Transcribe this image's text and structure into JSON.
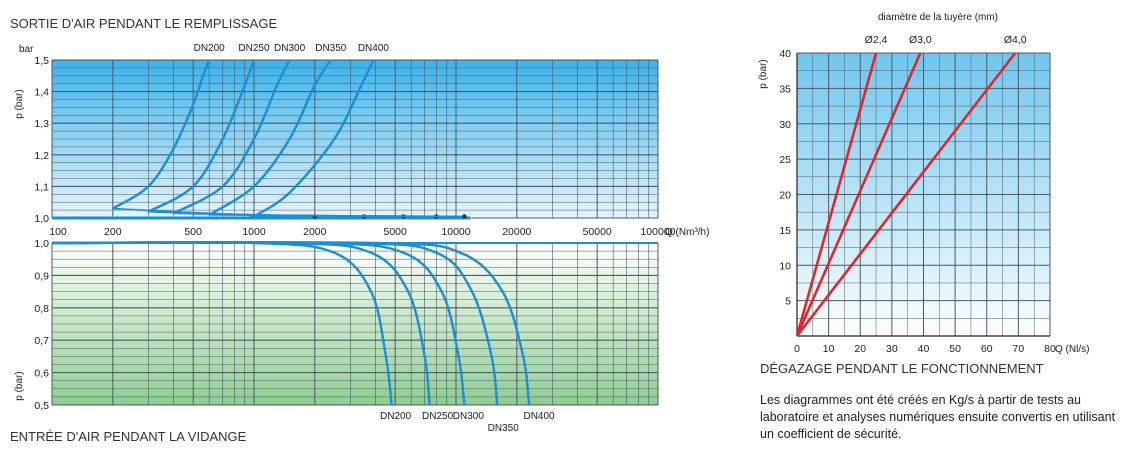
{
  "chart_data": [
    {
      "type": "line",
      "title": "SORTIE D'AIR PENDANT LE REMPLISSAGE",
      "ylabel": "p (bar)",
      "yunit": "bar",
      "xlabel": "Q (Nm³/h)",
      "xscale": "log",
      "xlim": [
        100,
        100000
      ],
      "ylim": [
        1.0,
        1.5
      ],
      "x_ticks": [
        "100",
        "200",
        "500",
        "1000",
        "2000",
        "5000",
        "10000",
        "20000",
        "50000",
        "100000"
      ],
      "y_ticks": [
        "1,0",
        "1,1",
        "1,2",
        "1,3",
        "1,4",
        "1,5"
      ],
      "grid": true,
      "series": [
        {
          "name": "DN200",
          "x": [
            200,
            300,
            400,
            500,
            560,
            600
          ],
          "y": [
            1.03,
            1.1,
            1.22,
            1.36,
            1.45,
            1.5
          ]
        },
        {
          "name": "DN250",
          "x": [
            300,
            500,
            700,
            900,
            1000
          ],
          "y": [
            1.02,
            1.1,
            1.25,
            1.42,
            1.5
          ]
        },
        {
          "name": "DN300",
          "x": [
            400,
            700,
            1000,
            1300,
            1500
          ],
          "y": [
            1.015,
            1.1,
            1.25,
            1.42,
            1.5
          ]
        },
        {
          "name": "DN350",
          "x": [
            600,
            1000,
            1500,
            2000,
            2400
          ],
          "y": [
            1.01,
            1.1,
            1.25,
            1.42,
            1.5
          ]
        },
        {
          "name": "DN400",
          "x": [
            1000,
            1500,
            2500,
            3400,
            3900
          ],
          "y": [
            1.005,
            1.08,
            1.25,
            1.42,
            1.5
          ]
        }
      ]
    },
    {
      "type": "line",
      "title": "ENTRÉE D'AIR PENDANT LA VIDANGE",
      "ylabel": "p (bar)",
      "xscale": "log",
      "xlim": [
        100,
        100000
      ],
      "ylim": [
        0.5,
        1.0
      ],
      "y_ticks": [
        "0,5",
        "0,6",
        "0,7",
        "0,8",
        "0,9",
        "1,0"
      ],
      "grid": true,
      "series": [
        {
          "name": "DN200",
          "x": [
            100,
            1000,
            2500,
            3800,
            4500,
            4800
          ],
          "y": [
            1.0,
            1.0,
            0.97,
            0.85,
            0.65,
            0.5
          ]
        },
        {
          "name": "DN250",
          "x": [
            100,
            1500,
            3800,
            5800,
            7000,
            7400
          ],
          "y": [
            1.0,
            1.0,
            0.97,
            0.85,
            0.65,
            0.5
          ]
        },
        {
          "name": "DN300",
          "x": [
            100,
            2000,
            5500,
            8500,
            10300,
            11000
          ],
          "y": [
            1.0,
            1.0,
            0.97,
            0.85,
            0.65,
            0.5
          ]
        },
        {
          "name": "DN350",
          "x": [
            100,
            3000,
            8000,
            12000,
            15000,
            16000
          ],
          "y": [
            1.0,
            1.0,
            0.97,
            0.85,
            0.65,
            0.5
          ]
        },
        {
          "name": "DN400",
          "x": [
            100,
            4000,
            10500,
            17000,
            21500,
            23000
          ],
          "y": [
            1.0,
            1.0,
            0.97,
            0.85,
            0.65,
            0.5
          ]
        }
      ]
    },
    {
      "type": "line",
      "title": "DÉGAZAGE PENDANT LE FONCTIONNEMENT",
      "subtitle": "diamètre de la tuyère (mm)",
      "ylabel": "p (bar)",
      "xlabel": "Q (Nl/s)",
      "xlim": [
        0,
        80
      ],
      "ylim": [
        0,
        40
      ],
      "x_ticks": [
        "0",
        "10",
        "20",
        "30",
        "40",
        "50",
        "60",
        "70",
        "80"
      ],
      "y_ticks": [
        "5",
        "10",
        "15",
        "20",
        "25",
        "30",
        "35",
        "40"
      ],
      "grid": true,
      "series": [
        {
          "name": "Ø2,4",
          "x": [
            0,
            25
          ],
          "y": [
            0,
            40
          ]
        },
        {
          "name": "Ø3,0",
          "x": [
            0,
            39
          ],
          "y": [
            0,
            40
          ]
        },
        {
          "name": "Ø4,0",
          "x": [
            0,
            69
          ],
          "y": [
            0,
            40
          ]
        }
      ]
    }
  ],
  "note": "Les diagrammes ont été créés en Kg/s à partir de tests au laboratoire et analyses numériques ensuite convertis en utilisant un coefficient de sécurité.",
  "colors": {
    "top_grad_start": "#3cb2ea",
    "top_grad_end": "#e6f5fc",
    "bottom_grad_start": "#ffffff",
    "bottom_grad_end": "#8fce8f",
    "right_grad_start": "#6fc6ef",
    "right_grad_end": "#ffffff",
    "curve": "#1a8fd3",
    "red_line": "#e4232a"
  }
}
